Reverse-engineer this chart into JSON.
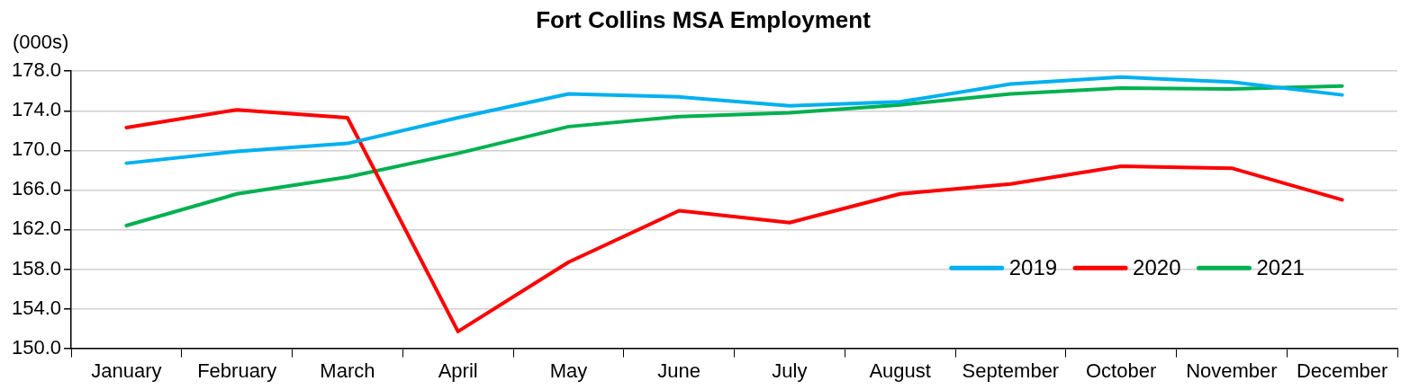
{
  "chart_data": {
    "type": "line",
    "title": "Fort Collins MSA Employment",
    "ylabel": "(000s)",
    "categories": [
      "January",
      "February",
      "March",
      "April",
      "May",
      "June",
      "July",
      "August",
      "September",
      "October",
      "November",
      "December"
    ],
    "series": [
      {
        "name": "2019",
        "color": "#00b0f0",
        "values": [
          168.7,
          169.9,
          170.7,
          173.3,
          175.7,
          175.4,
          174.5,
          174.9,
          176.7,
          177.4,
          176.9,
          175.6
        ]
      },
      {
        "name": "2020",
        "color": "#ff0000",
        "values": [
          172.3,
          174.1,
          173.3,
          151.7,
          158.7,
          163.9,
          162.7,
          165.6,
          166.6,
          168.4,
          168.2,
          165.0
        ]
      },
      {
        "name": "2021",
        "color": "#00b050",
        "values": [
          162.4,
          165.6,
          167.3,
          169.7,
          172.4,
          173.4,
          173.8,
          174.6,
          175.7,
          176.3,
          176.2,
          176.5
        ]
      }
    ],
    "ylim": [
      150,
      178
    ],
    "yticks": [
      {
        "value": 150,
        "label": "150.0"
      },
      {
        "value": 154,
        "label": "154.0"
      },
      {
        "value": 158,
        "label": "158.0"
      },
      {
        "value": 162,
        "label": "162.0"
      },
      {
        "value": 166,
        "label": "166.0"
      },
      {
        "value": 170,
        "label": "170.0"
      },
      {
        "value": 174,
        "label": "174.0"
      },
      {
        "value": 178,
        "label": "178.0"
      }
    ],
    "grid": "y",
    "legend": "bottom right",
    "marker": "none",
    "line_style": "solid"
  }
}
